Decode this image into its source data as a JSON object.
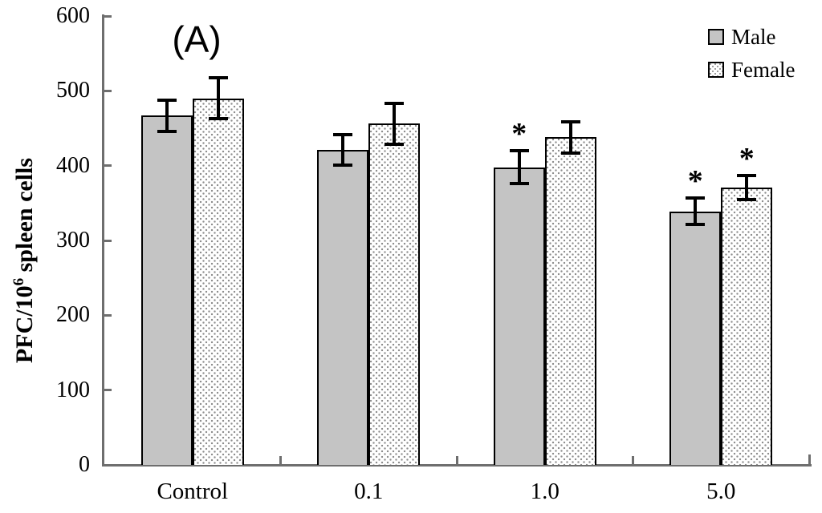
{
  "panel_label": "(A)",
  "chart_data": {
    "type": "bar",
    "title": "(A)",
    "categories": [
      "Control",
      "0.1",
      "1.0",
      "5.0"
    ],
    "series": [
      {
        "name": "Male",
        "values": [
          467,
          421,
          398,
          339
        ],
        "errors": [
          21,
          20,
          22,
          18
        ],
        "significant": [
          false,
          false,
          true,
          true
        ],
        "fill": "#c4c4c4",
        "pattern": "solid"
      },
      {
        "name": "Female",
        "values": [
          490,
          456,
          438,
          371
        ],
        "errors": [
          27,
          27,
          21,
          16
        ],
        "significant": [
          false,
          false,
          false,
          true
        ],
        "fill": "#ffffff",
        "pattern": "dots"
      }
    ],
    "ylabel": {
      "prefix": "PFC/10",
      "sup": "6",
      "suffix": " spleen cells"
    },
    "xlabel": "",
    "ylim": [
      0,
      600
    ],
    "yticks": [
      0,
      100,
      200,
      300,
      400,
      500,
      600
    ],
    "error_bars": true,
    "sig_marker": "*",
    "legend_position": "top-right",
    "grid": false,
    "colors": {
      "bar_border": "#000000",
      "axis": "#6e6e6e",
      "male_fill": "#c4c4c4",
      "female_dot": "#8e8e8e"
    }
  }
}
